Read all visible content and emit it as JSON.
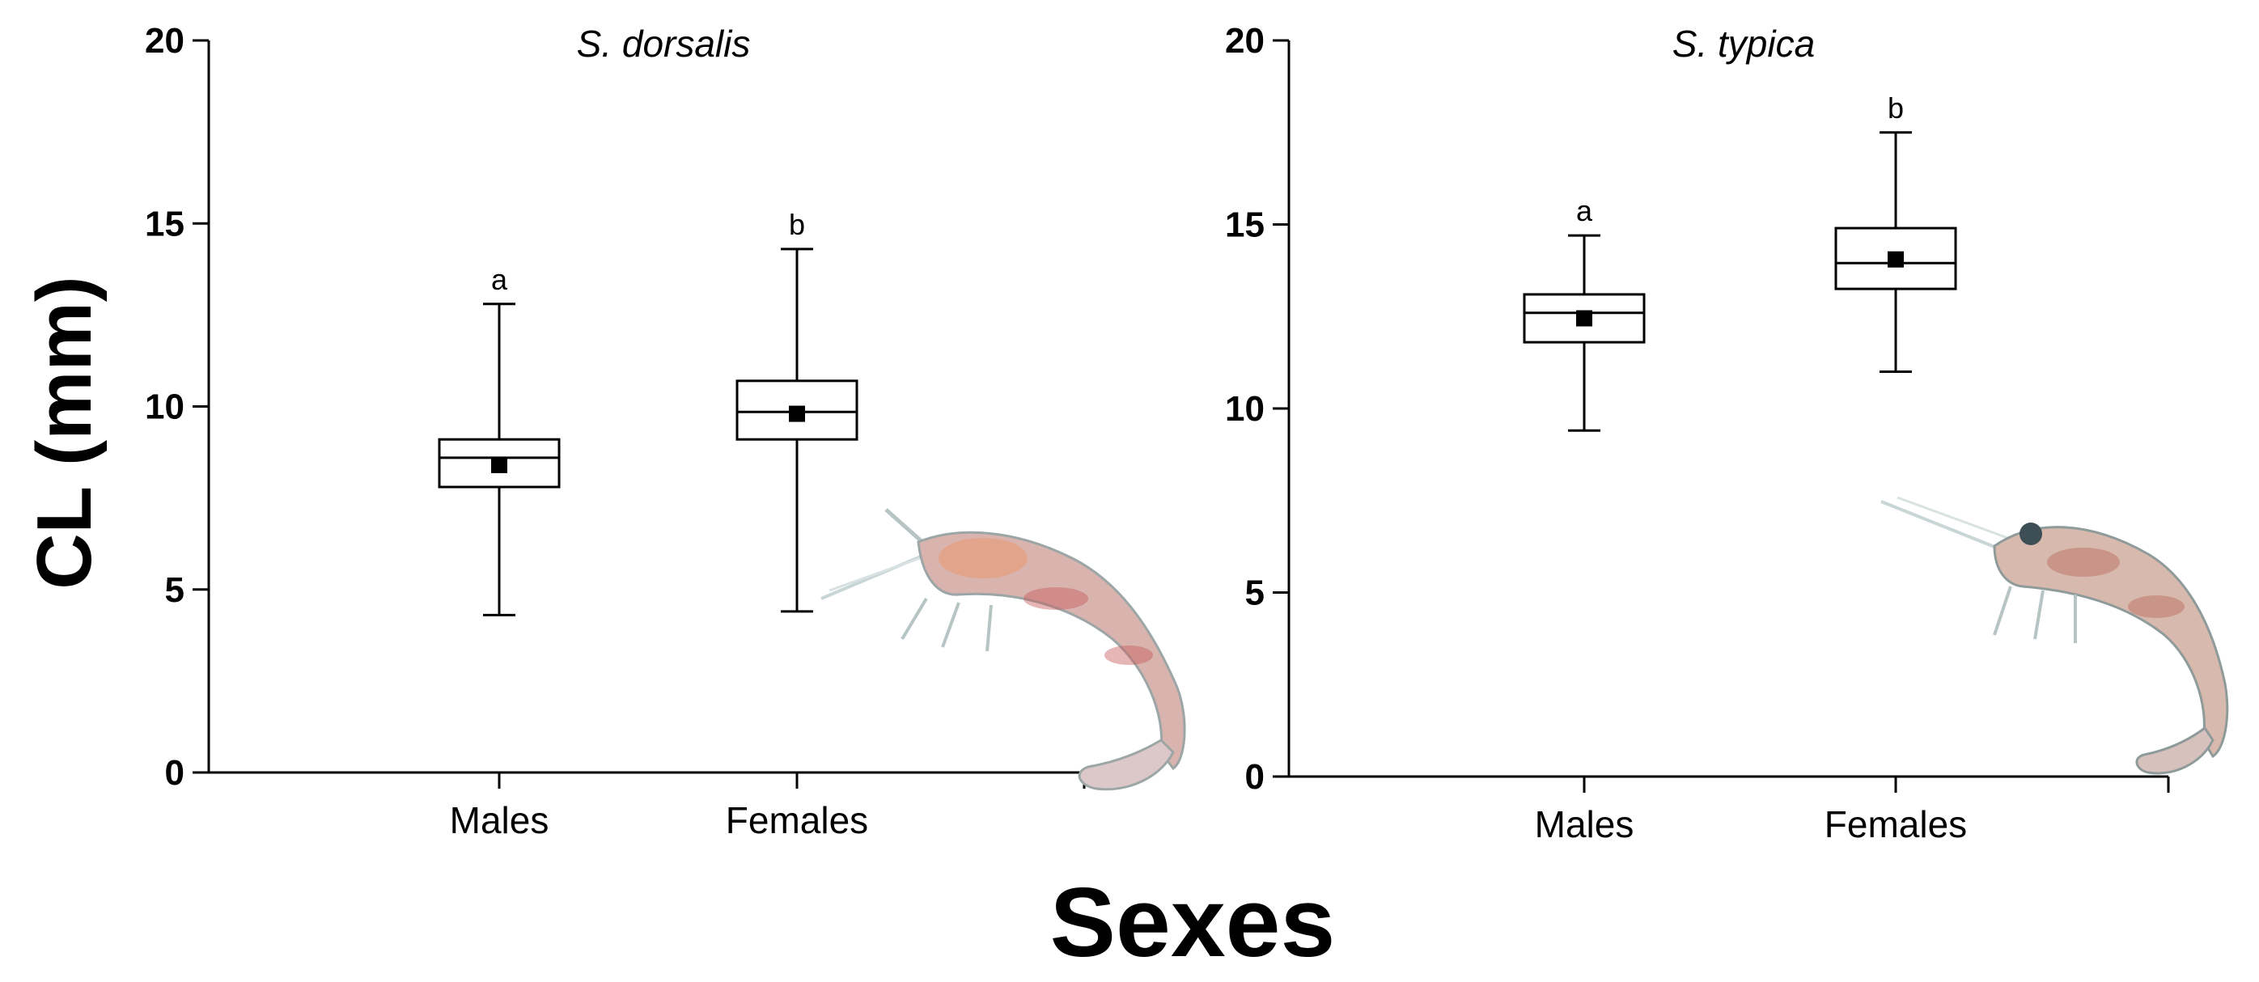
{
  "chart_data": [
    {
      "type": "box",
      "title": "S. dorsalis",
      "categories": [
        "Males",
        "Females"
      ],
      "yticks": [
        0,
        5,
        10,
        15,
        20
      ],
      "ylim": [
        0,
        20
      ],
      "boxes": [
        {
          "category": "Males",
          "min": 4.3,
          "q1": 7.8,
          "median": 8.6,
          "q3": 9.1,
          "max": 12.8,
          "mean": 8.4,
          "letter": "a"
        },
        {
          "category": "Females",
          "min": 4.4,
          "q1": 9.1,
          "median": 9.85,
          "q3": 10.7,
          "max": 14.3,
          "mean": 9.8,
          "letter": "b"
        }
      ],
      "image_icon": "shrimp-photo"
    },
    {
      "type": "box",
      "title": "S. typica",
      "categories": [
        "Males",
        "Females"
      ],
      "yticks": [
        0,
        5,
        10,
        15,
        20
      ],
      "ylim": [
        0,
        20
      ],
      "boxes": [
        {
          "category": "Males",
          "min": 9.4,
          "q1": 11.8,
          "median": 12.6,
          "q3": 13.1,
          "max": 14.7,
          "mean": 12.45,
          "letter": "a"
        },
        {
          "category": "Females",
          "min": 11.0,
          "q1": 13.25,
          "median": 13.95,
          "q3": 14.9,
          "max": 17.5,
          "mean": 14.05,
          "letter": "b"
        }
      ],
      "image_icon": "shrimp-photo"
    }
  ],
  "ylabel": "CL (mm)",
  "xlabel": "Sexes"
}
